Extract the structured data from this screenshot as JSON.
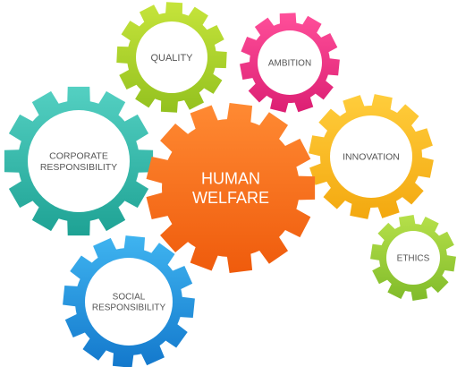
{
  "gears": [
    {
      "id": "human-welfare",
      "lines": [
        "HUMAN",
        "WELFARE"
      ],
      "color_light": "#ff8a33",
      "color_dark": "#ef5b0c",
      "primary": true
    },
    {
      "id": "quality",
      "lines": [
        "QUALITY"
      ],
      "color_light": "#c6e43b",
      "color_dark": "#93c11f"
    },
    {
      "id": "ambition",
      "lines": [
        "AMBITION"
      ],
      "color_light": "#ff4f9a",
      "color_dark": "#dc1f73"
    },
    {
      "id": "corporate-responsibility",
      "lines": [
        "CORPORATE",
        "RESPONSIBILITY"
      ],
      "color_light": "#54d0c2",
      "color_dark": "#1ea294"
    },
    {
      "id": "innovation",
      "lines": [
        "INNOVATION"
      ],
      "color_light": "#ffcd3c",
      "color_dark": "#f3a80f"
    },
    {
      "id": "ethics",
      "lines": [
        "ETHICS"
      ],
      "color_light": "#b6e04a",
      "color_dark": "#80bb2a"
    },
    {
      "id": "social-responsibility",
      "lines": [
        "SOCIAL",
        "RESPONSIBILITY"
      ],
      "color_light": "#3fb4f0",
      "color_dark": "#1378cc"
    }
  ]
}
